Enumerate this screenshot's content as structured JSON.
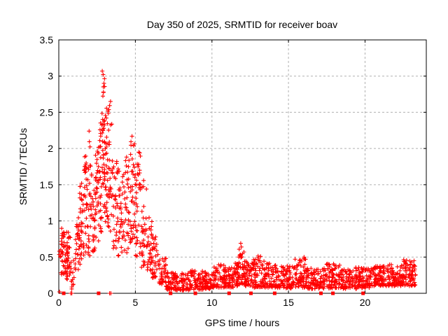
{
  "header": {
    "title": "Day 350 of 2025, SRMTID for receiver boav"
  },
  "colors": {
    "marker": "#ff0000",
    "grid": "#b0b0b0",
    "axis": "#000000",
    "background": "#ffffff",
    "text": "#000000"
  },
  "chart_data": {
    "type": "scatter",
    "title": "Day 350 of 2025, SRMTID for receiver boav",
    "xlabel": "GPS time / hours",
    "ylabel": "SRMTID / TECUs",
    "xlim": [
      0,
      24
    ],
    "ylim": [
      0,
      3.5
    ],
    "xticks": [
      0,
      5,
      10,
      15,
      20
    ],
    "xtick_labels": [
      "0",
      "5",
      "10",
      "15",
      "20"
    ],
    "yticks": [
      0,
      0.5,
      1,
      1.5,
      2,
      2.5,
      3,
      3.5
    ],
    "ytick_labels": [
      "0",
      "0.5",
      "1",
      "1.5",
      "2",
      "2.5",
      "3",
      "3.5"
    ],
    "grid": true,
    "legend": "none",
    "description": "Dense scatter of red plus markers: strong TID activity 0.5-6.5 h peaking ~3.08 TECUs near 2.8 h, secondary peaks ~2.65 at 3.4 h and ~2.2 at 2.0 h and 4.8 h, decaying to a 0.1-0.3 baseline after 7 h with small bumps (0.69 at 11.9 h, 0.5 near 13 h and 16 h), data ending at 23.3 h; red filled squares on the zero line mark flagged epochs.",
    "series": [
      {
        "name": "srmtid",
        "marker": "plus",
        "color": "#ff0000",
        "notable_points": [
          [
            0.05,
            0.02
          ],
          [
            0.78,
            0.0
          ],
          [
            0.85,
            0.0
          ],
          [
            3.32,
            0.0
          ],
          [
            3.4,
            0.0
          ],
          [
            1.98,
            2.24
          ],
          [
            2.84,
            3.07
          ],
          [
            2.9,
            3.02
          ],
          [
            2.95,
            2.9
          ],
          [
            3.38,
            2.65
          ],
          [
            4.78,
            2.17
          ],
          [
            6.2,
            0.69
          ],
          [
            11.88,
            0.69
          ],
          [
            11.92,
            0.64
          ],
          [
            16.02,
            0.5
          ],
          [
            23.2,
            0.45
          ]
        ],
        "density_bins": [
          [
            0.0,
            0.15,
            5,
            0.3,
            0.75,
            1.0
          ],
          [
            0.15,
            0.45,
            34,
            0.25,
            0.9,
            1.0
          ],
          [
            0.45,
            0.75,
            38,
            0.18,
            0.85,
            1.1
          ],
          [
            0.75,
            1.05,
            12,
            0.05,
            0.5,
            1.2
          ],
          [
            1.05,
            1.35,
            28,
            0.3,
            1.05,
            1.1
          ],
          [
            1.35,
            1.6,
            32,
            0.4,
            1.55,
            1.15
          ],
          [
            1.6,
            1.9,
            34,
            0.5,
            1.95,
            1.15
          ],
          [
            1.9,
            2.1,
            24,
            0.5,
            2.2,
            1.3
          ],
          [
            2.1,
            2.4,
            30,
            0.55,
            1.65,
            1.1
          ],
          [
            2.4,
            2.6,
            26,
            0.7,
            2.05,
            1.2
          ],
          [
            2.6,
            2.8,
            30,
            0.85,
            2.4,
            1.2
          ],
          [
            2.8,
            3.0,
            36,
            1.2,
            3.08,
            1.1
          ],
          [
            3.0,
            3.2,
            30,
            0.95,
            2.6,
            1.1
          ],
          [
            3.2,
            3.5,
            32,
            0.8,
            2.6,
            1.25
          ],
          [
            3.5,
            3.8,
            30,
            0.6,
            1.9,
            1.2
          ],
          [
            3.8,
            4.2,
            36,
            0.5,
            1.75,
            1.2
          ],
          [
            4.2,
            4.6,
            36,
            0.55,
            1.9,
            1.2
          ],
          [
            4.6,
            5.0,
            40,
            0.7,
            2.1,
            1.25
          ],
          [
            5.0,
            5.35,
            36,
            0.5,
            1.95,
            1.25
          ],
          [
            5.35,
            5.75,
            32,
            0.35,
            1.6,
            1.3
          ],
          [
            5.75,
            6.1,
            30,
            0.3,
            1.05,
            1.2
          ],
          [
            6.1,
            6.5,
            30,
            0.2,
            0.78,
            1.2
          ],
          [
            6.5,
            7.0,
            36,
            0.12,
            0.5,
            1.3
          ],
          [
            7.0,
            7.5,
            40,
            0.05,
            0.3,
            1.5
          ],
          [
            7.5,
            8.5,
            72,
            0.04,
            0.28,
            1.5
          ],
          [
            8.5,
            9.5,
            72,
            0.05,
            0.33,
            1.5
          ],
          [
            9.5,
            10.1,
            50,
            0.06,
            0.3,
            1.5
          ],
          [
            10.1,
            10.8,
            55,
            0.08,
            0.4,
            1.5
          ],
          [
            10.8,
            11.4,
            52,
            0.08,
            0.36,
            1.4
          ],
          [
            11.4,
            11.75,
            34,
            0.1,
            0.42,
            1.3
          ],
          [
            11.75,
            12.1,
            32,
            0.12,
            0.65,
            1.5
          ],
          [
            12.1,
            12.5,
            40,
            0.1,
            0.45,
            1.4
          ],
          [
            12.5,
            13.4,
            75,
            0.08,
            0.52,
            1.5
          ],
          [
            13.4,
            14.3,
            75,
            0.08,
            0.42,
            1.5
          ],
          [
            14.3,
            15.3,
            80,
            0.07,
            0.38,
            1.5
          ],
          [
            15.3,
            16.2,
            75,
            0.08,
            0.5,
            1.5
          ],
          [
            16.2,
            17.3,
            85,
            0.06,
            0.36,
            1.5
          ],
          [
            17.3,
            18.4,
            85,
            0.07,
            0.42,
            1.5
          ],
          [
            18.4,
            19.5,
            85,
            0.06,
            0.36,
            1.5
          ],
          [
            19.5,
            20.5,
            80,
            0.07,
            0.36,
            1.5
          ],
          [
            20.5,
            21.5,
            85,
            0.09,
            0.38,
            1.4
          ],
          [
            21.5,
            22.5,
            85,
            0.1,
            0.4,
            1.4
          ],
          [
            22.5,
            23.3,
            70,
            0.1,
            0.47,
            1.3
          ]
        ]
      },
      {
        "name": "flagged-zero-epochs",
        "marker": "filled-square",
        "color": "#ff0000",
        "y": 0,
        "x_values": [
          0.32,
          2.6,
          7.3,
          8.92,
          11.12,
          12.55,
          14.1,
          17.12,
          17.9,
          19.87
        ]
      }
    ]
  }
}
